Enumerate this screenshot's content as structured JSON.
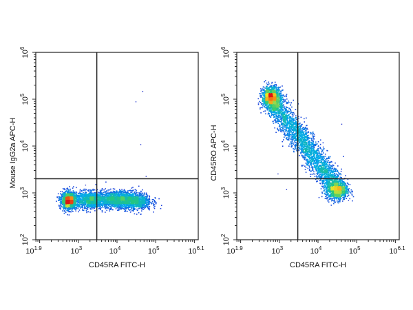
{
  "chart_data": [
    {
      "type": "scatter",
      "subtype": "flow-cytometry-density-dot-plot",
      "xlabel": "CD45RA FITC-H",
      "ylabel": "Mouse IgG2a APC-H",
      "xscale": "log",
      "yscale": "log",
      "xlim": [
        79.4,
        1258925
      ],
      "ylim": [
        100,
        1000000
      ],
      "x_ticks": [
        {
          "base": "10",
          "exp": "1.9",
          "value": 79.4
        },
        {
          "base": "10",
          "exp": "3",
          "value": 1000
        },
        {
          "base": "10",
          "exp": "4",
          "value": 10000
        },
        {
          "base": "10",
          "exp": "5",
          "value": 100000
        },
        {
          "base": "10",
          "exp": "6.1",
          "value": 1258925
        }
      ],
      "y_ticks": [
        {
          "base": "10",
          "exp": "2",
          "value": 100
        },
        {
          "base": "10",
          "exp": "3",
          "value": 1000
        },
        {
          "base": "10",
          "exp": "4",
          "value": 10000
        },
        {
          "base": "10",
          "exp": "5",
          "value": 100000
        },
        {
          "base": "10",
          "exp": "6",
          "value": 1000000
        }
      ],
      "quadrant_gate": {
        "x": 3000,
        "y": 2000
      },
      "populations": [
        {
          "center": [
            550,
            700
          ],
          "log_spread": [
            0.1,
            0.09
          ],
          "count": 1400
        },
        {
          "center": [
            1900,
            720
          ],
          "log_spread": [
            0.22,
            0.09
          ],
          "count": 1100
        },
        {
          "center": [
            9000,
            740
          ],
          "log_spread": [
            0.26,
            0.09
          ],
          "count": 1400
        },
        {
          "center": [
            30000,
            680
          ],
          "log_spread": [
            0.2,
            0.09
          ],
          "count": 900
        }
      ],
      "sparse_points": [
        [
          45000,
          150000
        ],
        [
          30000,
          90000
        ],
        [
          40000,
          11000
        ],
        [
          55000,
          2300
        ],
        [
          1500,
          1500
        ]
      ],
      "grid": false,
      "legend": "none"
    },
    {
      "type": "scatter",
      "subtype": "flow-cytometry-density-dot-plot",
      "xlabel": "CD45RA FITC-H",
      "ylabel": "CD45RO APC-H",
      "xscale": "log",
      "yscale": "log",
      "xlim": [
        79.4,
        1258925
      ],
      "ylim": [
        100,
        1000000
      ],
      "x_ticks": [
        {
          "base": "10",
          "exp": "1.9",
          "value": 79.4
        },
        {
          "base": "10",
          "exp": "3",
          "value": 1000
        },
        {
          "base": "10",
          "exp": "4",
          "value": 10000
        },
        {
          "base": "10",
          "exp": "5",
          "value": 100000
        },
        {
          "base": "10",
          "exp": "6.1",
          "value": 1258925
        }
      ],
      "y_ticks": [
        {
          "base": "10",
          "exp": "2",
          "value": 100
        },
        {
          "base": "10",
          "exp": "3",
          "value": 1000
        },
        {
          "base": "10",
          "exp": "4",
          "value": 10000
        },
        {
          "base": "10",
          "exp": "5",
          "value": 100000
        },
        {
          "base": "10",
          "exp": "6",
          "value": 1000000
        }
      ],
      "quadrant_gate": {
        "x": 3000,
        "y": 2000
      },
      "populations": [
        {
          "center": [
            600,
            110000
          ],
          "log_spread": [
            0.12,
            0.12
          ],
          "count": 1300
        },
        {
          "from": [
            700,
            80000
          ],
          "to": [
            25000,
            1700
          ],
          "log_width": 0.13,
          "count": 2600
        },
        {
          "center": [
            30000,
            1200
          ],
          "log_spread": [
            0.14,
            0.11
          ],
          "count": 1100
        }
      ],
      "sparse_points": [
        [
          40000,
          30000
        ],
        [
          1500,
          1200
        ],
        [
          900,
          2600
        ],
        [
          60000,
          700
        ]
      ],
      "grid": false,
      "legend": "none"
    }
  ]
}
